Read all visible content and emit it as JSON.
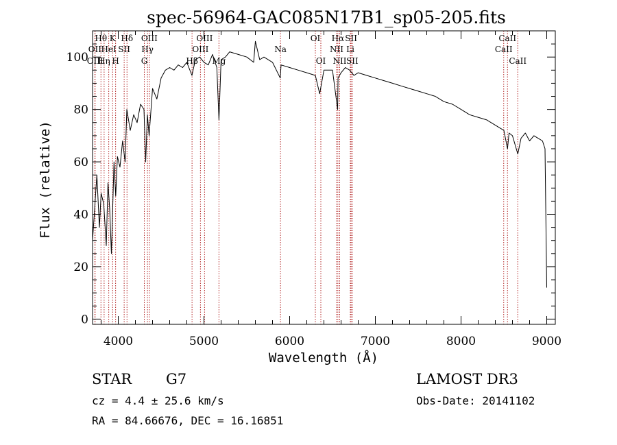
{
  "chart_data": {
    "type": "line",
    "title": "spec-56964-GAC085N17B1_sp05-205.fits",
    "xlabel": "Wavelength (Å)",
    "ylabel": "Flux (relative)",
    "xlim": [
      3700,
      9100
    ],
    "ylim": [
      -2,
      110
    ],
    "x_ticks": [
      4000,
      5000,
      6000,
      7000,
      8000,
      9000
    ],
    "x_tick_labels": [
      "4000",
      "5000",
      "6000",
      "7000",
      "8000",
      "9000"
    ],
    "y_ticks": [
      0,
      20,
      40,
      60,
      80,
      100
    ],
    "y_tick_labels": [
      "0",
      "20",
      "40",
      "60",
      "80",
      "100"
    ],
    "series": [
      {
        "name": "flux",
        "x": [
          3700,
          3730,
          3750,
          3780,
          3800,
          3830,
          3860,
          3880,
          3900,
          3920,
          3950,
          3970,
          3990,
          4020,
          4050,
          4080,
          4100,
          4140,
          4180,
          4220,
          4260,
          4300,
          4320,
          4340,
          4360,
          4400,
          4450,
          4500,
          4550,
          4600,
          4650,
          4700,
          4750,
          4800,
          4860,
          4900,
          4950,
          5000,
          5050,
          5100,
          5150,
          5175,
          5200,
          5250,
          5300,
          5400,
          5500,
          5580,
          5600,
          5650,
          5700,
          5800,
          5890,
          5900,
          6000,
          6100,
          6200,
          6300,
          6350,
          6400,
          6500,
          6560,
          6565,
          6600,
          6650,
          6700,
          6750,
          6800,
          6900,
          7000,
          7100,
          7200,
          7300,
          7400,
          7500,
          7600,
          7700,
          7800,
          7900,
          8000,
          8100,
          8200,
          8300,
          8400,
          8500,
          8542,
          8560,
          8600,
          8662,
          8700,
          8750,
          8800,
          8850,
          8900,
          8950,
          8980,
          9000
        ],
        "y": [
          30,
          45,
          55,
          35,
          48,
          44,
          28,
          52,
          42,
          25,
          60,
          47,
          62,
          58,
          68,
          60,
          80,
          72,
          78,
          75,
          82,
          80,
          60,
          78,
          70,
          88,
          84,
          92,
          95,
          96,
          95,
          97,
          96,
          98,
          93,
          99,
          100,
          98,
          97,
          101,
          96,
          76,
          99,
          100,
          102,
          101,
          100,
          98,
          106,
          99,
          100,
          98,
          92,
          97,
          96,
          95,
          94,
          93,
          86,
          95,
          95,
          80,
          92,
          94,
          96,
          95,
          93,
          94,
          93,
          92,
          91,
          90,
          89,
          88,
          87,
          86,
          85,
          83,
          82,
          80,
          78,
          77,
          76,
          74,
          72,
          65,
          71,
          70,
          63,
          69,
          71,
          68,
          70,
          69,
          68,
          65,
          12
        ]
      }
    ],
    "spectral_lines": [
      {
        "label": "Hθ",
        "x": 3798,
        "row": 1
      },
      {
        "label": "OII",
        "x": 3727,
        "row": 2
      },
      {
        "label": "OIII",
        "x": 3730,
        "row": 3
      },
      {
        "label": "Hη",
        "x": 3835,
        "row": 3
      },
      {
        "label": "K",
        "x": 3934,
        "row": 1
      },
      {
        "label": "HeI",
        "x": 3889,
        "row": 2
      },
      {
        "label": "H",
        "x": 3969,
        "row": 3
      },
      {
        "label": "Hδ",
        "x": 4102,
        "row": 1
      },
      {
        "label": "SII",
        "x": 4069,
        "row": 2
      },
      {
        "label": "OIII",
        "x": 4363,
        "row": 1
      },
      {
        "label": "Hγ",
        "x": 4341,
        "row": 2
      },
      {
        "label": "G",
        "x": 4304,
        "row": 3
      },
      {
        "label": "OIII",
        "x": 5007,
        "row": 1
      },
      {
        "label": "OIII",
        "x": 4959,
        "row": 2
      },
      {
        "label": "Hβ",
        "x": 4861,
        "row": 3
      },
      {
        "label": "Mg",
        "x": 5175,
        "row": 3
      },
      {
        "label": "Na",
        "x": 5893,
        "row": 2
      },
      {
        "label": "OI",
        "x": 6300,
        "row": 1
      },
      {
        "label": "OI",
        "x": 6364,
        "row": 3
      },
      {
        "label": "Hα",
        "x": 6563,
        "row": 1
      },
      {
        "label": "NII",
        "x": 6548,
        "row": 2
      },
      {
        "label": "NII",
        "x": 6584,
        "row": 3
      },
      {
        "label": "SII",
        "x": 6717,
        "row": 1
      },
      {
        "label": "Li",
        "x": 6708,
        "row": 2
      },
      {
        "label": "SII",
        "x": 6731,
        "row": 3
      },
      {
        "label": "CaII",
        "x": 8542,
        "row": 1
      },
      {
        "label": "CaII",
        "x": 8498,
        "row": 2
      },
      {
        "label": "CaII",
        "x": 8662,
        "row": 3
      }
    ]
  },
  "footer": {
    "object_class": "STAR",
    "subclass": "G7",
    "survey": "LAMOST DR3",
    "redshift_text": "cz = 4.4 ± 25.6 km/s",
    "obs_date": "Obs-Date: 20141102",
    "coords": "RA =  84.66676, DEC =  16.16851"
  },
  "colors": {
    "spectrum": "#000000",
    "line_markers": "#b22222",
    "axes": "#000000"
  }
}
